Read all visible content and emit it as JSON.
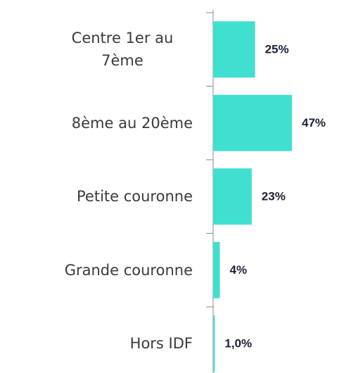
{
  "chart_data": {
    "type": "bar",
    "orientation": "horizontal",
    "categories": [
      "Centre 1er au 7ème",
      "8ème au 20ème",
      "Petite couronne",
      "Grande couronne",
      "Hors IDF"
    ],
    "values": [
      25,
      47,
      23,
      4,
      1.0
    ],
    "value_labels": [
      "25%",
      "47%",
      "23%",
      "4%",
      "1,0%"
    ],
    "color": "#40e0d0"
  }
}
